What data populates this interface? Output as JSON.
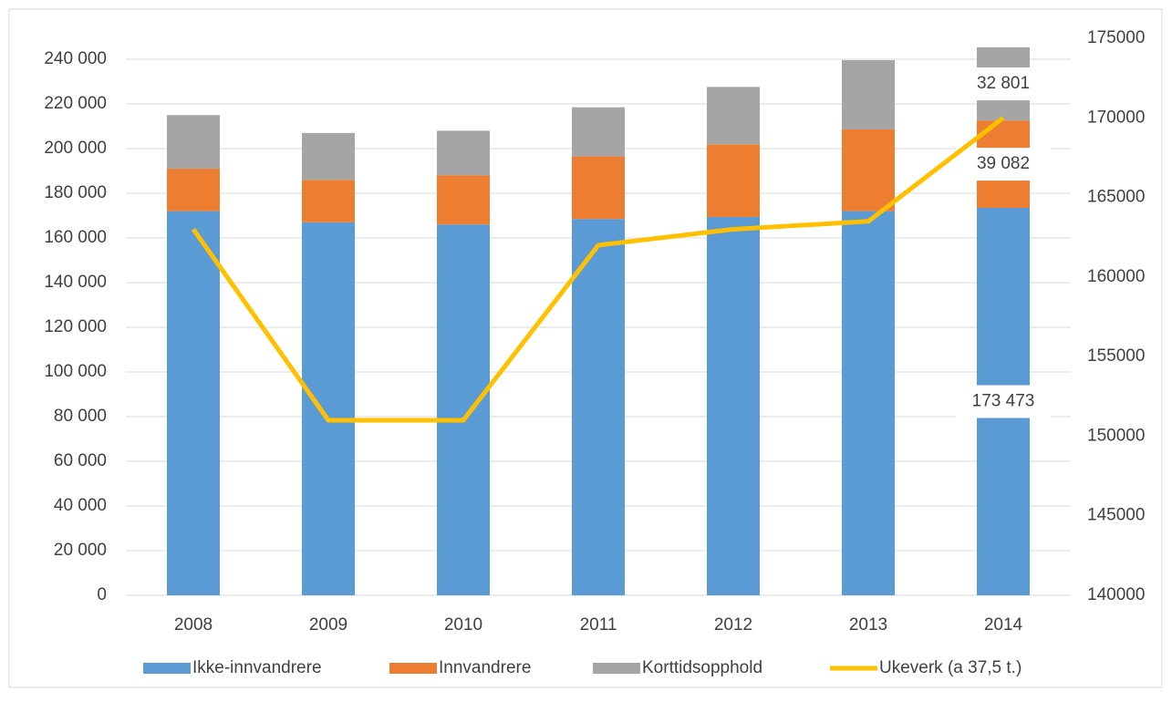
{
  "chart_data": {
    "type": "bar",
    "categories": [
      "2008",
      "2009",
      "2010",
      "2011",
      "2012",
      "2013",
      "2014"
    ],
    "series": [
      {
        "name": "Ikke-innvandrere",
        "color": "#5b9bd5",
        "values": [
          172000,
          167000,
          166000,
          168500,
          169400,
          172000,
          173473
        ],
        "value_labels": [
          null,
          null,
          null,
          null,
          null,
          null,
          "173 473"
        ]
      },
      {
        "name": "Innvandrere",
        "color": "#ed7d31",
        "values": [
          19000,
          19000,
          22000,
          28000,
          32500,
          36600,
          39082
        ],
        "value_labels": [
          null,
          null,
          null,
          null,
          null,
          null,
          "39 082"
        ]
      },
      {
        "name": "Korttidsopphold",
        "color": "#a5a5a5",
        "values": [
          24000,
          21000,
          20000,
          22000,
          25700,
          31000,
          32801
        ],
        "value_labels": [
          null,
          null,
          null,
          null,
          null,
          null,
          "32 801"
        ]
      },
      {
        "name": "Ukeverk (a 37,5 t.)",
        "color": "#ffc000",
        "type": "line",
        "axis": "y2",
        "values": [
          163000,
          151000,
          151000,
          162000,
          163000,
          163500,
          170000
        ]
      }
    ],
    "stacked": true,
    "ylim": [
      0,
      240000
    ],
    "yticks": [
      {
        "value": 0,
        "label": "0"
      },
      {
        "value": 20000,
        "label": "20 000"
      },
      {
        "value": 40000,
        "label": "40 000"
      },
      {
        "value": 60000,
        "label": "60 000"
      },
      {
        "value": 80000,
        "label": "80 000"
      },
      {
        "value": 100000,
        "label": "100 000"
      },
      {
        "value": 120000,
        "label": "120 000"
      },
      {
        "value": 140000,
        "label": "140 000"
      },
      {
        "value": 160000,
        "label": "160 000"
      },
      {
        "value": 180000,
        "label": "180 000"
      },
      {
        "value": 200000,
        "label": "200 000"
      },
      {
        "value": 220000,
        "label": "220 000"
      },
      {
        "value": 240000,
        "label": "240 000"
      }
    ],
    "y2lim": [
      140000,
      175000
    ],
    "y2ticks": [
      140000,
      145000,
      150000,
      155000,
      160000,
      165000,
      170000,
      175000
    ],
    "grid": true,
    "legend": "bottom"
  }
}
